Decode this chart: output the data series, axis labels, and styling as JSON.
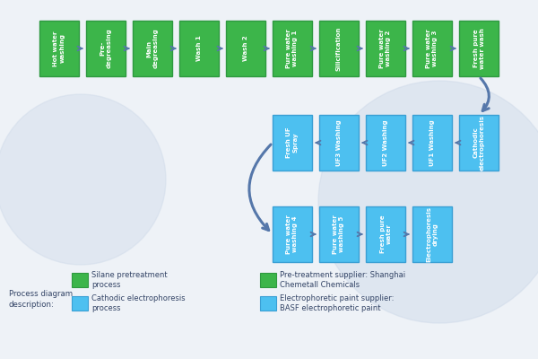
{
  "background_color": "#eef2f7",
  "green_color": "#3cb54a",
  "blue_color": "#4dc0f0",
  "blue_border": "#3a9fd4",
  "green_border": "#2e9940",
  "arrow_color": "#5577aa",
  "row1_boxes": [
    "Hot water\nwashing",
    "Pre-\ndegreasing",
    "Main\ndegreasing",
    "Wash 1",
    "Wash 2",
    "Pure water\nwashing 1",
    "Silicification",
    "Pure water\nwashing 2",
    "Pure water\nwashing 3",
    "Fresh pure\nwater wash"
  ],
  "row2_boxes": [
    "Fresh UF\nSpray",
    "UF3 Washing",
    "UF2 Washing",
    "UF1 Washing",
    "Cathodic\nelectrophoresis"
  ],
  "row3_boxes": [
    "Pure water\nwashing 4",
    "Pure water\nwashing 5",
    "Fresh pure\nwater",
    "Electrophoresis\ndrying"
  ]
}
